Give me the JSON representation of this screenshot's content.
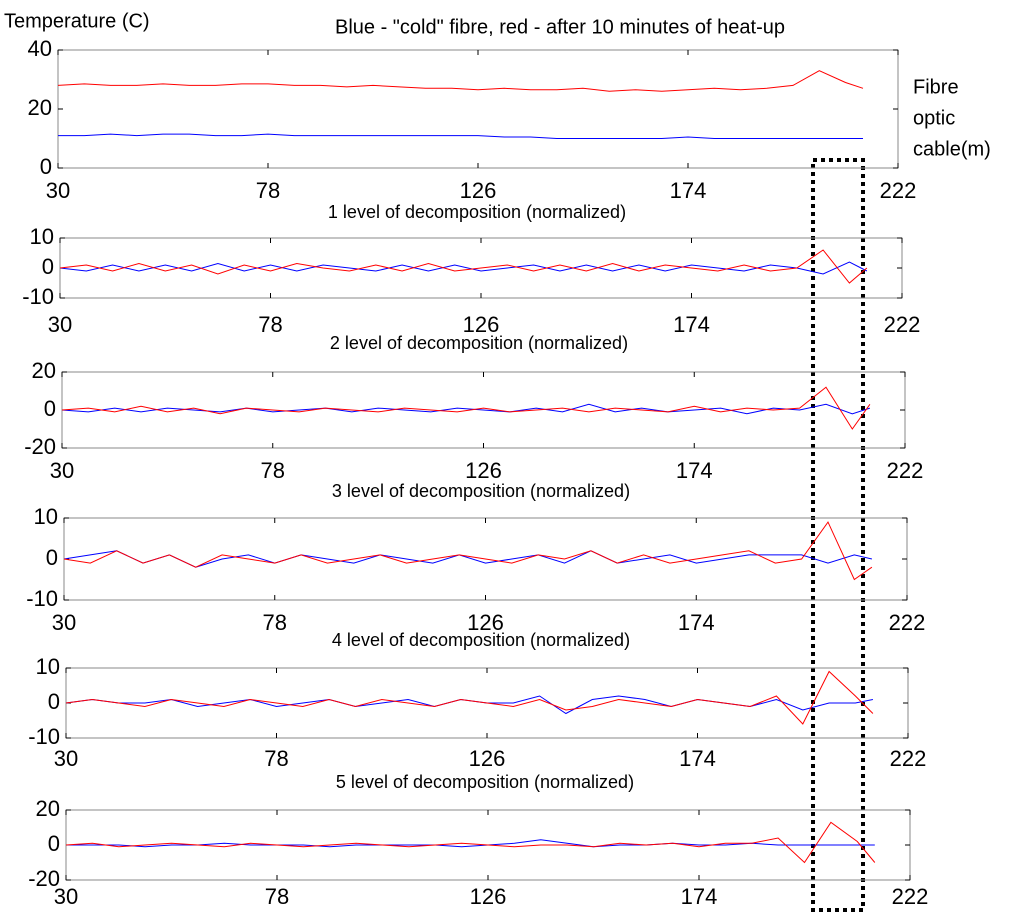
{
  "chart_data": [
    {
      "type": "line",
      "title": "Blue - \"cold\" fibre, red - after 10 minutes of heat-up",
      "ylabel": "Temperature (C)",
      "xlabel_lines": [
        "Fibre",
        "optic",
        "cable(m)"
      ],
      "x": [
        30,
        36,
        42,
        48,
        54,
        60,
        66,
        72,
        78,
        84,
        90,
        96,
        102,
        108,
        114,
        120,
        126,
        132,
        138,
        144,
        150,
        156,
        162,
        168,
        174,
        180,
        186,
        192,
        198,
        204,
        210,
        214
      ],
      "xlim": [
        30,
        222
      ],
      "xticks": [
        30,
        78,
        126,
        174,
        222
      ],
      "ylim": [
        0,
        40
      ],
      "yticks": [
        0,
        20,
        40
      ],
      "series": [
        {
          "color": "#0000ff",
          "values": [
            11,
            11,
            11.5,
            11,
            11.5,
            11.5,
            11,
            11,
            11.5,
            11,
            11,
            11,
            11,
            11,
            11,
            11,
            11,
            10.5,
            10.5,
            10,
            10,
            10,
            10,
            10,
            10.5,
            10,
            10,
            10,
            10,
            10,
            10,
            10
          ]
        },
        {
          "color": "#ff0000",
          "values": [
            28,
            28.5,
            28,
            28,
            28.5,
            28,
            28,
            28.5,
            28.5,
            28,
            28,
            27.5,
            28,
            27.5,
            27,
            27,
            26.5,
            27,
            26.5,
            26.5,
            27,
            26,
            26.5,
            26,
            26.5,
            27,
            26.5,
            27,
            28,
            33,
            29,
            27
          ]
        }
      ]
    },
    {
      "type": "line",
      "title": "1 level of decomposition (normalized)",
      "x": [
        30,
        36,
        42,
        48,
        54,
        60,
        66,
        72,
        78,
        84,
        90,
        96,
        102,
        108,
        114,
        120,
        126,
        132,
        138,
        144,
        150,
        156,
        162,
        168,
        174,
        180,
        186,
        192,
        198,
        204,
        210,
        214
      ],
      "xlim": [
        30,
        222
      ],
      "xticks": [
        30,
        78,
        126,
        174,
        222
      ],
      "ylim": [
        -10,
        10
      ],
      "yticks": [
        -10,
        0,
        10
      ],
      "series": [
        {
          "color": "#0000ff",
          "values": [
            0,
            -1,
            1,
            -1,
            1,
            -1,
            1.5,
            -1,
            1,
            -1,
            1,
            0,
            -1,
            1,
            -1,
            1,
            -1,
            0,
            1,
            -1,
            1,
            -1,
            1,
            -1,
            1,
            0,
            -1,
            1,
            0,
            -2,
            2,
            -1
          ]
        },
        {
          "color": "#ff0000",
          "values": [
            0,
            1,
            -1,
            1.5,
            -1,
            1,
            -2,
            1,
            -1,
            1.5,
            0,
            -1,
            1,
            -1,
            1.5,
            -1,
            0,
            1,
            -1,
            1,
            -1,
            1.5,
            -1,
            1,
            0,
            -1,
            1,
            -1,
            0,
            6,
            -5,
            0
          ]
        }
      ]
    },
    {
      "type": "line",
      "title": "2 level of decomposition (normalized)",
      "x": [
        30,
        36,
        42,
        48,
        54,
        60,
        66,
        72,
        78,
        84,
        90,
        96,
        102,
        108,
        114,
        120,
        126,
        132,
        138,
        144,
        150,
        156,
        162,
        168,
        174,
        180,
        186,
        192,
        198,
        204,
        210,
        214
      ],
      "xlim": [
        30,
        222
      ],
      "xticks": [
        30,
        78,
        126,
        174,
        222
      ],
      "ylim": [
        -20,
        20
      ],
      "yticks": [
        -20,
        0,
        20
      ],
      "series": [
        {
          "color": "#0000ff",
          "values": [
            0,
            -1,
            1,
            -1,
            1,
            0,
            -1,
            1,
            -1,
            0,
            1,
            -1,
            1,
            0,
            -1,
            1,
            0,
            -1,
            1,
            -1,
            3,
            -1,
            1,
            -1,
            0,
            1,
            -2,
            1,
            0,
            3,
            -2,
            1
          ]
        },
        {
          "color": "#ff0000",
          "values": [
            0,
            1,
            -1,
            2,
            -1,
            1,
            -2,
            1,
            0,
            -1,
            1,
            0,
            -1,
            1,
            0,
            -1,
            1,
            -1,
            0,
            1,
            -1,
            1,
            0,
            -1,
            2,
            -1,
            1,
            0,
            1,
            12,
            -10,
            3
          ]
        }
      ]
    },
    {
      "type": "line",
      "title": "3 level of decomposition (normalized)",
      "x": [
        30,
        36,
        42,
        48,
        54,
        60,
        66,
        72,
        78,
        84,
        90,
        96,
        102,
        108,
        114,
        120,
        126,
        132,
        138,
        144,
        150,
        156,
        162,
        168,
        174,
        180,
        186,
        192,
        198,
        204,
        210,
        214
      ],
      "xlim": [
        30,
        222
      ],
      "xticks": [
        30,
        78,
        126,
        174,
        222
      ],
      "ylim": [
        -10,
        10
      ],
      "yticks": [
        -10,
        0,
        10
      ],
      "series": [
        {
          "color": "#0000ff",
          "values": [
            0,
            1,
            2,
            -1,
            1,
            -2,
            0,
            1,
            -1,
            1,
            0,
            -1,
            1,
            0,
            -1,
            1,
            -1,
            0,
            1,
            -1,
            2,
            -1,
            0,
            1,
            -1,
            0,
            1,
            1,
            1,
            -1,
            1,
            0
          ]
        },
        {
          "color": "#ff0000",
          "values": [
            0,
            -1,
            2,
            -1,
            1,
            -2,
            1,
            0,
            -1,
            1,
            -1,
            0,
            1,
            -1,
            0,
            1,
            0,
            -1,
            1,
            0,
            2,
            -1,
            1,
            -1,
            0,
            1,
            2,
            -1,
            0,
            9,
            -5,
            -2
          ]
        }
      ]
    },
    {
      "type": "line",
      "title": "4 level of decomposition (normalized)",
      "x": [
        30,
        36,
        42,
        48,
        54,
        60,
        66,
        72,
        78,
        84,
        90,
        96,
        102,
        108,
        114,
        120,
        126,
        132,
        138,
        144,
        150,
        156,
        162,
        168,
        174,
        180,
        186,
        192,
        198,
        204,
        210,
        214
      ],
      "xlim": [
        30,
        222
      ],
      "xticks": [
        30,
        78,
        126,
        174,
        222
      ],
      "ylim": [
        -10,
        10
      ],
      "yticks": [
        -10,
        0,
        10
      ],
      "series": [
        {
          "color": "#0000ff",
          "values": [
            0,
            1,
            0,
            0,
            1,
            -1,
            0,
            1,
            -1,
            0,
            1,
            -1,
            0,
            1,
            -1,
            1,
            0,
            0,
            2,
            -3,
            1,
            2,
            1,
            -1,
            1,
            0,
            -1,
            1,
            -2,
            0,
            0,
            1
          ]
        },
        {
          "color": "#ff0000",
          "values": [
            0,
            1,
            0,
            -1,
            1,
            0,
            -1,
            1,
            0,
            -1,
            1,
            -1,
            1,
            0,
            -1,
            1,
            0,
            -1,
            1,
            -2,
            -1,
            1,
            0,
            -1,
            1,
            0,
            -1,
            2,
            -6,
            9,
            2,
            -3
          ]
        }
      ]
    },
    {
      "type": "line",
      "title": "5 level of decomposition (normalized)",
      "x": [
        30,
        36,
        42,
        48,
        54,
        60,
        66,
        72,
        78,
        84,
        90,
        96,
        102,
        108,
        114,
        120,
        126,
        132,
        138,
        144,
        150,
        156,
        162,
        168,
        174,
        180,
        186,
        192,
        198,
        204,
        210,
        214
      ],
      "xlim": [
        30,
        222
      ],
      "xticks": [
        30,
        78,
        126,
        174,
        222
      ],
      "ylim": [
        -20,
        20
      ],
      "yticks": [
        -20,
        0,
        20
      ],
      "series": [
        {
          "color": "#0000ff",
          "values": [
            0,
            0,
            0,
            -1,
            0,
            0,
            1,
            0,
            0,
            0,
            -1,
            0,
            0,
            0,
            0,
            -1,
            0,
            1,
            3,
            1,
            -1,
            0,
            0,
            1,
            0,
            0,
            1,
            0,
            0,
            0,
            0,
            0
          ]
        },
        {
          "color": "#ff0000",
          "values": [
            0,
            1,
            -1,
            0,
            1,
            0,
            -1,
            1,
            0,
            -1,
            0,
            1,
            0,
            -1,
            0,
            1,
            0,
            -1,
            0,
            0,
            -1,
            1,
            0,
            1,
            -1,
            1,
            1,
            4,
            -10,
            13,
            2,
            -10
          ]
        }
      ]
    }
  ]
}
